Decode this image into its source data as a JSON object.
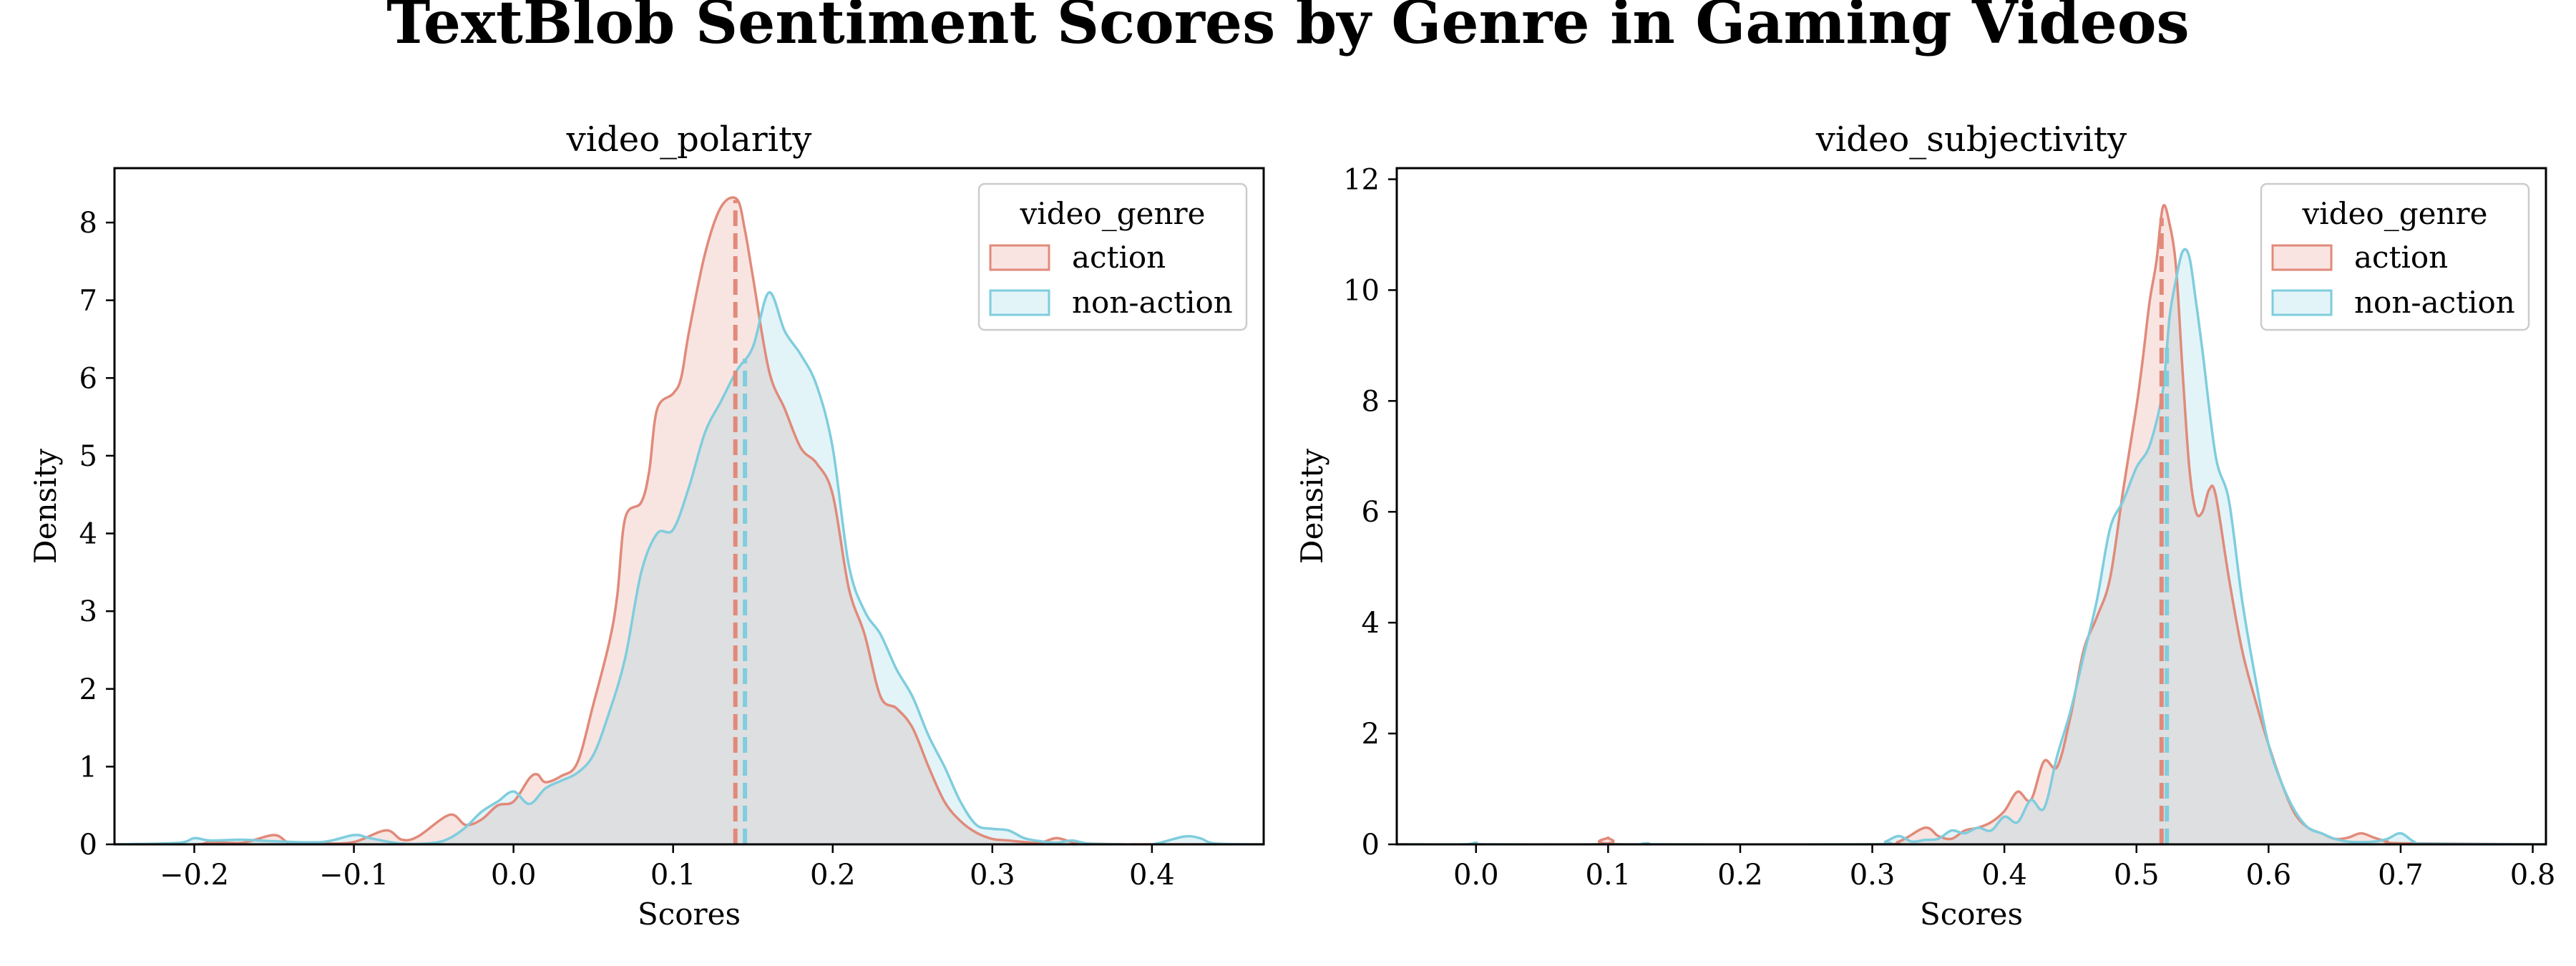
{
  "figure": {
    "title": "TextBlob Sentiment Scores by Genre in Gaming Videos"
  },
  "colors": {
    "action": "#E18A7A",
    "non_action": "#7FCDDD",
    "action_fill": "#F9E4E1",
    "non_action_fill": "#E3F4F8",
    "overlap_fill": "#E1E5E5"
  },
  "chart_data": [
    {
      "type": "area",
      "title": "video_polarity",
      "xlabel": "Scores",
      "ylabel": "Density",
      "xlim": [
        -0.25,
        0.47
      ],
      "ylim": [
        0,
        8.7
      ],
      "xticks": [
        -0.2,
        -0.1,
        0.0,
        0.1,
        0.2,
        0.3,
        0.4
      ],
      "xtick_labels": [
        "−0.2",
        "−0.1",
        "0.0",
        "0.1",
        "0.2",
        "0.3",
        "0.4"
      ],
      "yticks": [
        0,
        1,
        2,
        3,
        4,
        5,
        6,
        7,
        8
      ],
      "ytick_labels": [
        "0",
        "1",
        "2",
        "3",
        "4",
        "5",
        "6",
        "7",
        "8"
      ],
      "legend": {
        "title": "video_genre",
        "placement": "top-right",
        "entries": [
          "action",
          "non-action"
        ]
      },
      "grid": false,
      "series": [
        {
          "name": "action",
          "mean": 0.139,
          "x": [
            -0.25,
            -0.2,
            -0.19,
            -0.17,
            -0.15,
            -0.14,
            -0.12,
            -0.1,
            -0.08,
            -0.07,
            -0.06,
            -0.04,
            -0.03,
            -0.02,
            -0.01,
            0.0,
            0.01,
            0.015,
            0.02,
            0.03,
            0.04,
            0.05,
            0.06,
            0.065,
            0.07,
            0.08,
            0.085,
            0.09,
            0.1,
            0.105,
            0.11,
            0.12,
            0.13,
            0.14,
            0.145,
            0.15,
            0.16,
            0.17,
            0.18,
            0.19,
            0.2,
            0.21,
            0.22,
            0.23,
            0.24,
            0.25,
            0.26,
            0.27,
            0.28,
            0.29,
            0.3,
            0.31,
            0.32,
            0.33,
            0.34,
            0.35,
            0.36,
            0.38,
            0.4,
            0.47
          ],
          "values": [
            0,
            0,
            0.03,
            0.02,
            0.12,
            0.02,
            0.01,
            0.03,
            0.18,
            0.06,
            0.1,
            0.38,
            0.25,
            0.32,
            0.5,
            0.55,
            0.85,
            0.9,
            0.8,
            0.88,
            1.05,
            1.8,
            2.6,
            3.2,
            4.2,
            4.4,
            4.8,
            5.6,
            5.8,
            6.0,
            6.6,
            7.6,
            8.2,
            8.3,
            7.9,
            7.3,
            6.1,
            5.6,
            5.1,
            4.9,
            4.5,
            3.3,
            2.7,
            1.9,
            1.75,
            1.5,
            1.0,
            0.55,
            0.3,
            0.15,
            0.07,
            0.05,
            0.03,
            0.02,
            0.08,
            0.03,
            0.01,
            0,
            0,
            0
          ]
        },
        {
          "name": "non-action",
          "mean": 0.145,
          "x": [
            -0.25,
            -0.21,
            -0.2,
            -0.19,
            -0.17,
            -0.15,
            -0.12,
            -0.1,
            -0.09,
            -0.07,
            -0.05,
            -0.04,
            -0.03,
            -0.02,
            -0.01,
            0.0,
            0.01,
            0.02,
            0.03,
            0.04,
            0.05,
            0.06,
            0.07,
            0.08,
            0.09,
            0.1,
            0.11,
            0.12,
            0.13,
            0.14,
            0.15,
            0.16,
            0.17,
            0.18,
            0.19,
            0.2,
            0.21,
            0.22,
            0.23,
            0.24,
            0.25,
            0.26,
            0.27,
            0.28,
            0.29,
            0.3,
            0.31,
            0.32,
            0.33,
            0.34,
            0.35,
            0.36,
            0.38,
            0.4,
            0.42,
            0.43,
            0.44,
            0.47
          ],
          "values": [
            0,
            0.02,
            0.08,
            0.05,
            0.06,
            0.04,
            0.03,
            0.12,
            0.08,
            0.01,
            0.02,
            0.08,
            0.22,
            0.42,
            0.55,
            0.68,
            0.52,
            0.72,
            0.82,
            0.92,
            1.15,
            1.7,
            2.4,
            3.5,
            4.0,
            4.05,
            4.6,
            5.3,
            5.7,
            6.1,
            6.4,
            7.1,
            6.6,
            6.3,
            5.9,
            5.1,
            3.6,
            3.0,
            2.7,
            2.25,
            1.9,
            1.4,
            1.0,
            0.55,
            0.25,
            0.2,
            0.18,
            0.08,
            0.04,
            0.02,
            0.05,
            0.01,
            0,
            0,
            0.1,
            0.08,
            0.01,
            0
          ]
        }
      ]
    },
    {
      "type": "area",
      "title": "video_subjectivity",
      "xlabel": "Scores",
      "ylabel": "Density",
      "xlim": [
        -0.06,
        0.81
      ],
      "ylim": [
        0,
        12.2
      ],
      "xticks": [
        0.0,
        0.1,
        0.2,
        0.3,
        0.4,
        0.5,
        0.6,
        0.7,
        0.8
      ],
      "xtick_labels": [
        "0.0",
        "0.1",
        "0.2",
        "0.3",
        "0.4",
        "0.5",
        "0.6",
        "0.7",
        "0.8"
      ],
      "yticks": [
        0,
        2,
        4,
        6,
        8,
        10,
        12
      ],
      "ytick_labels": [
        "0",
        "2",
        "4",
        "6",
        "8",
        "10",
        "12"
      ],
      "legend": {
        "title": "video_genre",
        "placement": "top-right",
        "entries": [
          "action",
          "non-action"
        ]
      },
      "grid": false,
      "series": [
        {
          "name": "action",
          "mean": 0.519,
          "x": [
            -0.06,
            0.09,
            0.1,
            0.11,
            0.3,
            0.32,
            0.34,
            0.35,
            0.36,
            0.37,
            0.38,
            0.39,
            0.4,
            0.41,
            0.42,
            0.43,
            0.44,
            0.45,
            0.46,
            0.47,
            0.48,
            0.49,
            0.5,
            0.505,
            0.51,
            0.515,
            0.52,
            0.525,
            0.53,
            0.535,
            0.54,
            0.545,
            0.55,
            0.555,
            0.56,
            0.57,
            0.58,
            0.59,
            0.6,
            0.61,
            0.62,
            0.63,
            0.64,
            0.65,
            0.66,
            0.67,
            0.68,
            0.69,
            0.7,
            0.81
          ],
          "values": [
            0,
            0,
            0.12,
            0,
            0,
            0.05,
            0.3,
            0.15,
            0.1,
            0.25,
            0.3,
            0.4,
            0.6,
            0.95,
            0.8,
            1.5,
            1.4,
            2.3,
            3.5,
            4.1,
            4.8,
            6.4,
            7.9,
            8.8,
            9.8,
            10.5,
            11.5,
            11.2,
            10.4,
            8.5,
            6.8,
            6.0,
            6.0,
            6.4,
            6.3,
            4.8,
            3.5,
            2.6,
            1.8,
            1.1,
            0.55,
            0.3,
            0.2,
            0.1,
            0.12,
            0.2,
            0.12,
            0.05,
            0.02,
            0
          ]
        },
        {
          "name": "non-action",
          "mean": 0.523,
          "x": [
            -0.06,
            -0.01,
            0.0,
            0.01,
            0.12,
            0.13,
            0.14,
            0.3,
            0.31,
            0.32,
            0.33,
            0.34,
            0.35,
            0.36,
            0.37,
            0.38,
            0.39,
            0.4,
            0.41,
            0.42,
            0.43,
            0.44,
            0.45,
            0.46,
            0.47,
            0.48,
            0.49,
            0.5,
            0.51,
            0.52,
            0.525,
            0.53,
            0.535,
            0.54,
            0.545,
            0.55,
            0.56,
            0.57,
            0.58,
            0.59,
            0.6,
            0.61,
            0.62,
            0.63,
            0.64,
            0.65,
            0.66,
            0.67,
            0.68,
            0.69,
            0.7,
            0.71,
            0.72,
            0.81
          ],
          "values": [
            0,
            0,
            0.03,
            0,
            0,
            0.02,
            0,
            0,
            0.05,
            0.15,
            0.05,
            0.08,
            0.1,
            0.25,
            0.2,
            0.3,
            0.25,
            0.5,
            0.4,
            0.8,
            0.65,
            1.6,
            2.4,
            3.4,
            4.4,
            5.7,
            6.2,
            6.8,
            7.2,
            8.2,
            9.5,
            10.2,
            10.7,
            10.6,
            9.8,
            8.9,
            7.0,
            6.2,
            4.4,
            3.0,
            1.8,
            1.1,
            0.6,
            0.3,
            0.2,
            0.1,
            0.05,
            0.04,
            0.05,
            0.1,
            0.2,
            0.05,
            0.01,
            0
          ]
        }
      ]
    }
  ]
}
